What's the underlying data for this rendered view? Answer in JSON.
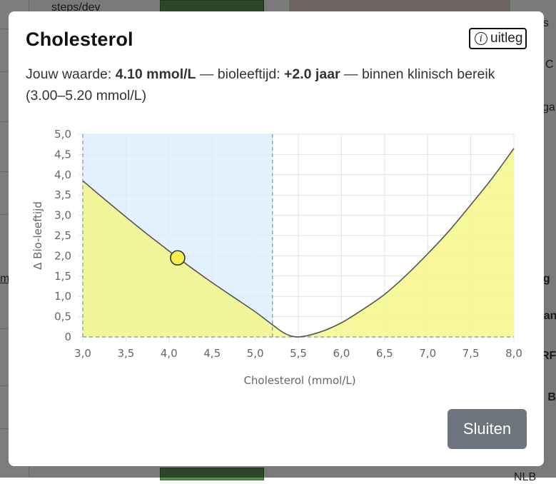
{
  "background": {
    "left_texts": [
      "steps/dev",
      "m"
    ],
    "right_texts": [
      "es",
      "C",
      "ga",
      "eg",
      "nan",
      "RF",
      "e B",
      "NLB"
    ]
  },
  "modal": {
    "title": "Cholesterol",
    "info_label": "uitleg",
    "info_icon": "info-circle-icon",
    "summary": {
      "prefix": "Jouw waarde: ",
      "value": "4.10 mmol/L",
      "mid": " — bioleeftijd: ",
      "bio": "+2.0 jaar",
      "suffix": " — binnen klinisch bereik (3.00–5.20 mmol/L)"
    },
    "close_label": "Sluiten"
  },
  "chart_data": {
    "type": "line",
    "xlabel": "Cholesterol (mmol/L)",
    "ylabel": "Δ Bio-leeftijd",
    "xlim": [
      3.0,
      8.0
    ],
    "ylim": [
      0,
      5.0
    ],
    "x_ticks": [
      "3,0",
      "3,5",
      "4,0",
      "4,5",
      "5,0",
      "5,5",
      "6,0",
      "6,5",
      "7,0",
      "7,5",
      "8,0"
    ],
    "y_ticks": [
      "0",
      "0,5",
      "1,0",
      "1,5",
      "2,0",
      "2,5",
      "3,0",
      "3,5",
      "4,0",
      "4,5",
      "5,0"
    ],
    "grid": true,
    "clinical_range": [
      3.0,
      5.2
    ],
    "curve": {
      "x": [
        3.0,
        3.25,
        3.5,
        3.75,
        4.0,
        4.25,
        4.5,
        4.75,
        5.0,
        5.2,
        5.35,
        5.5,
        5.75,
        6.0,
        6.25,
        6.5,
        6.75,
        7.0,
        7.25,
        7.5,
        7.75,
        8.0
      ],
      "y": [
        3.85,
        3.4,
        2.96,
        2.53,
        2.12,
        1.72,
        1.34,
        0.98,
        0.62,
        0.3,
        0.08,
        0.0,
        0.12,
        0.35,
        0.68,
        1.05,
        1.52,
        2.05,
        2.62,
        3.26,
        3.92,
        4.65
      ]
    },
    "marker": {
      "x": 4.1,
      "y": 1.95
    },
    "colors": {
      "fill": "#f5f78a",
      "range_fill": "#dbeeff",
      "marker": "#f7f04a",
      "line": "#555555"
    }
  }
}
